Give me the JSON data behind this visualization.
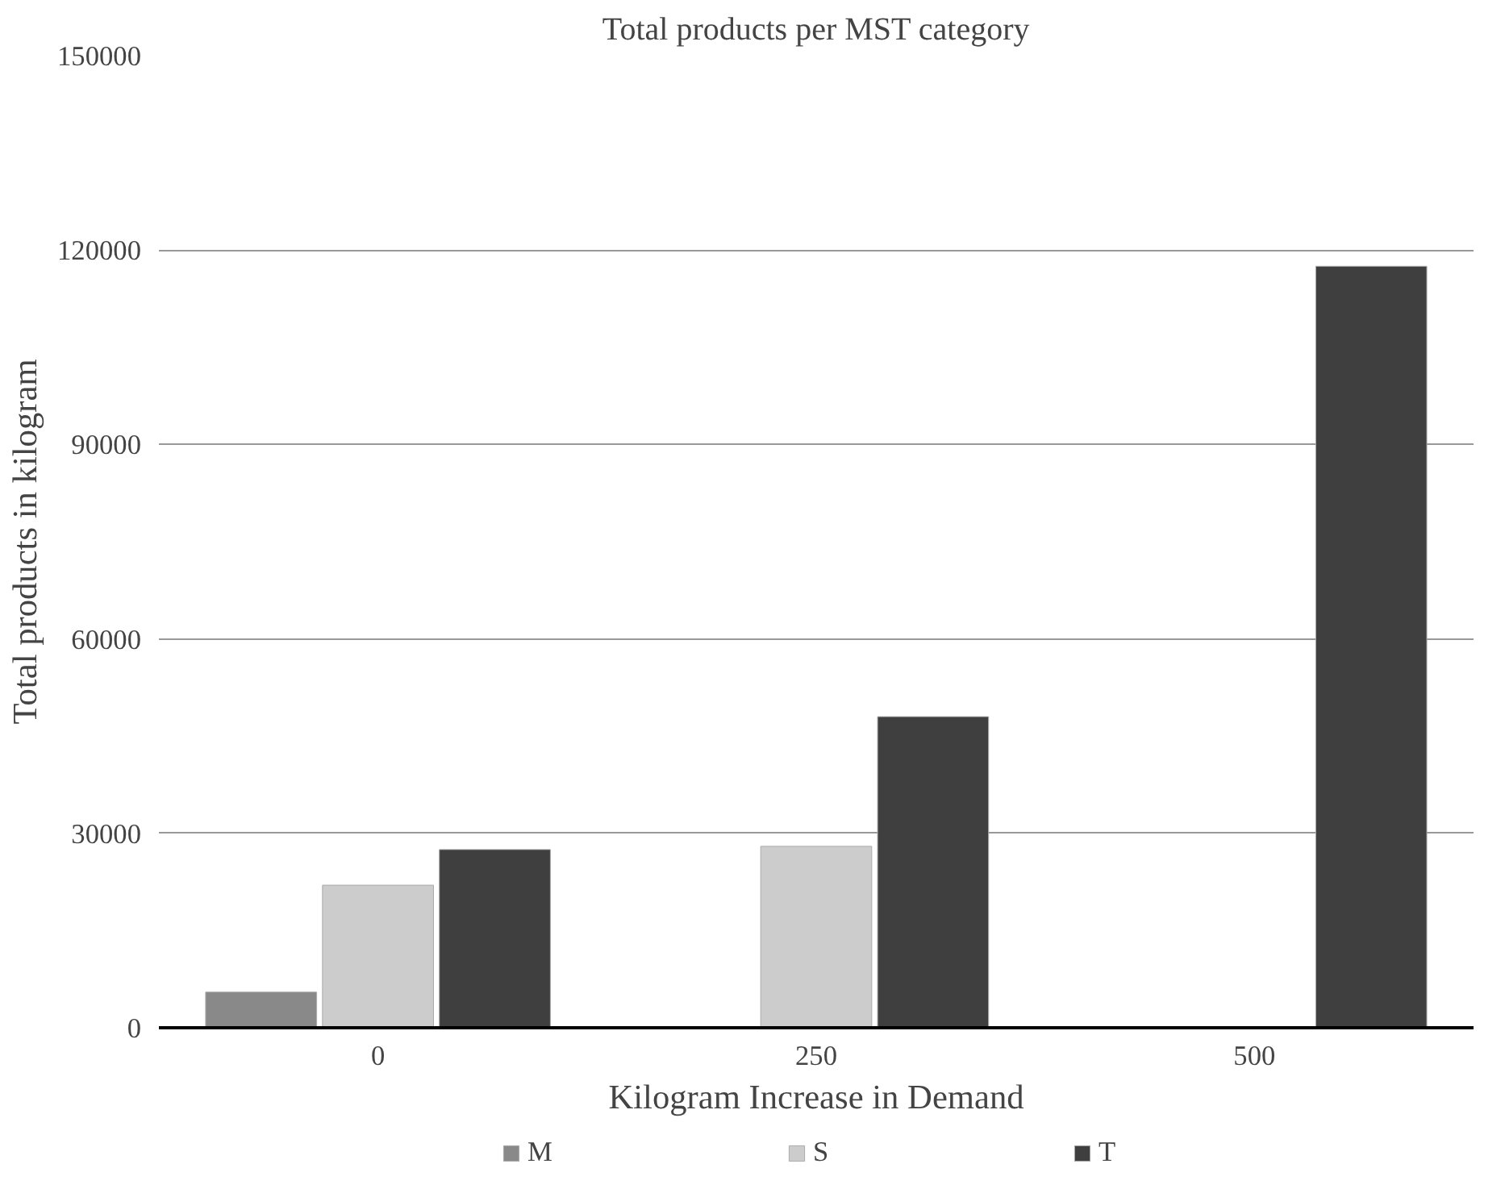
{
  "chart_data": {
    "type": "bar",
    "title": "Total products per MST category",
    "xlabel": "Kilogram Increase in Demand",
    "ylabel": "Total products in kilogram",
    "categories": [
      "0",
      "250",
      "500"
    ],
    "series": [
      {
        "name": "M",
        "color": "#898989",
        "values": [
          5500,
          null,
          null
        ]
      },
      {
        "name": "S",
        "color": "#cccccc",
        "values": [
          22000,
          28000,
          null
        ]
      },
      {
        "name": "T",
        "color": "#3f3f3f",
        "values": [
          27500,
          48000,
          117500
        ]
      }
    ],
    "ylim": [
      0,
      150000
    ],
    "yticks": [
      0,
      30000,
      60000,
      90000,
      120000,
      150000
    ],
    "grid": "y",
    "legend": "bottom"
  }
}
